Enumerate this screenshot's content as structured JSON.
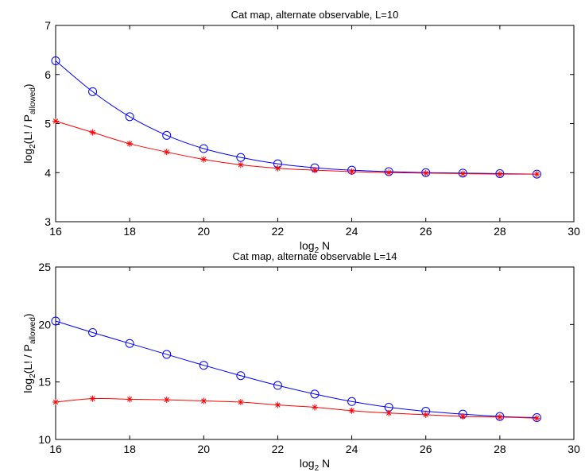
{
  "chart_data": [
    {
      "type": "line",
      "title": "Cat map, alternate observable, L=10",
      "xlabel": {
        "base": "log",
        "sub": "2",
        "rest": " N"
      },
      "ylabel": {
        "pre": "log",
        "sub1": "2",
        "mid": "(L! / P",
        "sub2": "allowed",
        "post": ")"
      },
      "xlim": [
        16,
        30
      ],
      "ylim": [
        3,
        7
      ],
      "xticks": [
        16,
        18,
        20,
        22,
        24,
        26,
        28,
        30
      ],
      "yticks": [
        3,
        4,
        5,
        6,
        7
      ],
      "x": [
        16,
        17,
        18,
        19,
        20,
        21,
        22,
        23,
        24,
        25,
        26,
        27,
        28,
        29
      ],
      "series": [
        {
          "color": "#0000ff",
          "marker": "circle",
          "values": [
            6.28,
            5.65,
            5.14,
            4.76,
            4.49,
            4.31,
            4.18,
            4.1,
            4.05,
            4.02,
            4.0,
            3.99,
            3.98,
            3.97
          ]
        },
        {
          "color": "#ff0000",
          "marker": "asterisk",
          "values": [
            5.05,
            4.82,
            4.59,
            4.42,
            4.27,
            4.16,
            4.09,
            4.05,
            4.02,
            4.0,
            3.99,
            3.98,
            3.97,
            3.97
          ]
        }
      ]
    },
    {
      "type": "line",
      "title": "Cat map, alternate observable L=14",
      "xlabel": {
        "base": "log",
        "sub": "2",
        "rest": " N"
      },
      "ylabel": {
        "pre": "log",
        "sub1": "2",
        "mid": "(L! / P",
        "sub2": "allowed",
        "post": ")"
      },
      "xlim": [
        16,
        30
      ],
      "ylim": [
        10,
        25
      ],
      "xticks": [
        16,
        18,
        20,
        22,
        24,
        26,
        28,
        30
      ],
      "yticks": [
        10,
        15,
        20,
        25
      ],
      "x": [
        16,
        17,
        18,
        19,
        20,
        21,
        22,
        23,
        24,
        25,
        26,
        27,
        28,
        29
      ],
      "series": [
        {
          "color": "#0000ff",
          "marker": "circle",
          "values": [
            20.3,
            19.3,
            18.35,
            17.4,
            16.45,
            15.55,
            14.7,
            13.95,
            13.3,
            12.8,
            12.45,
            12.2,
            12.0,
            11.9
          ]
        },
        {
          "color": "#ff0000",
          "marker": "asterisk",
          "values": [
            13.25,
            13.55,
            13.5,
            13.45,
            13.35,
            13.25,
            13.0,
            12.8,
            12.5,
            12.3,
            12.15,
            12.0,
            11.95,
            11.85
          ]
        }
      ]
    }
  ]
}
